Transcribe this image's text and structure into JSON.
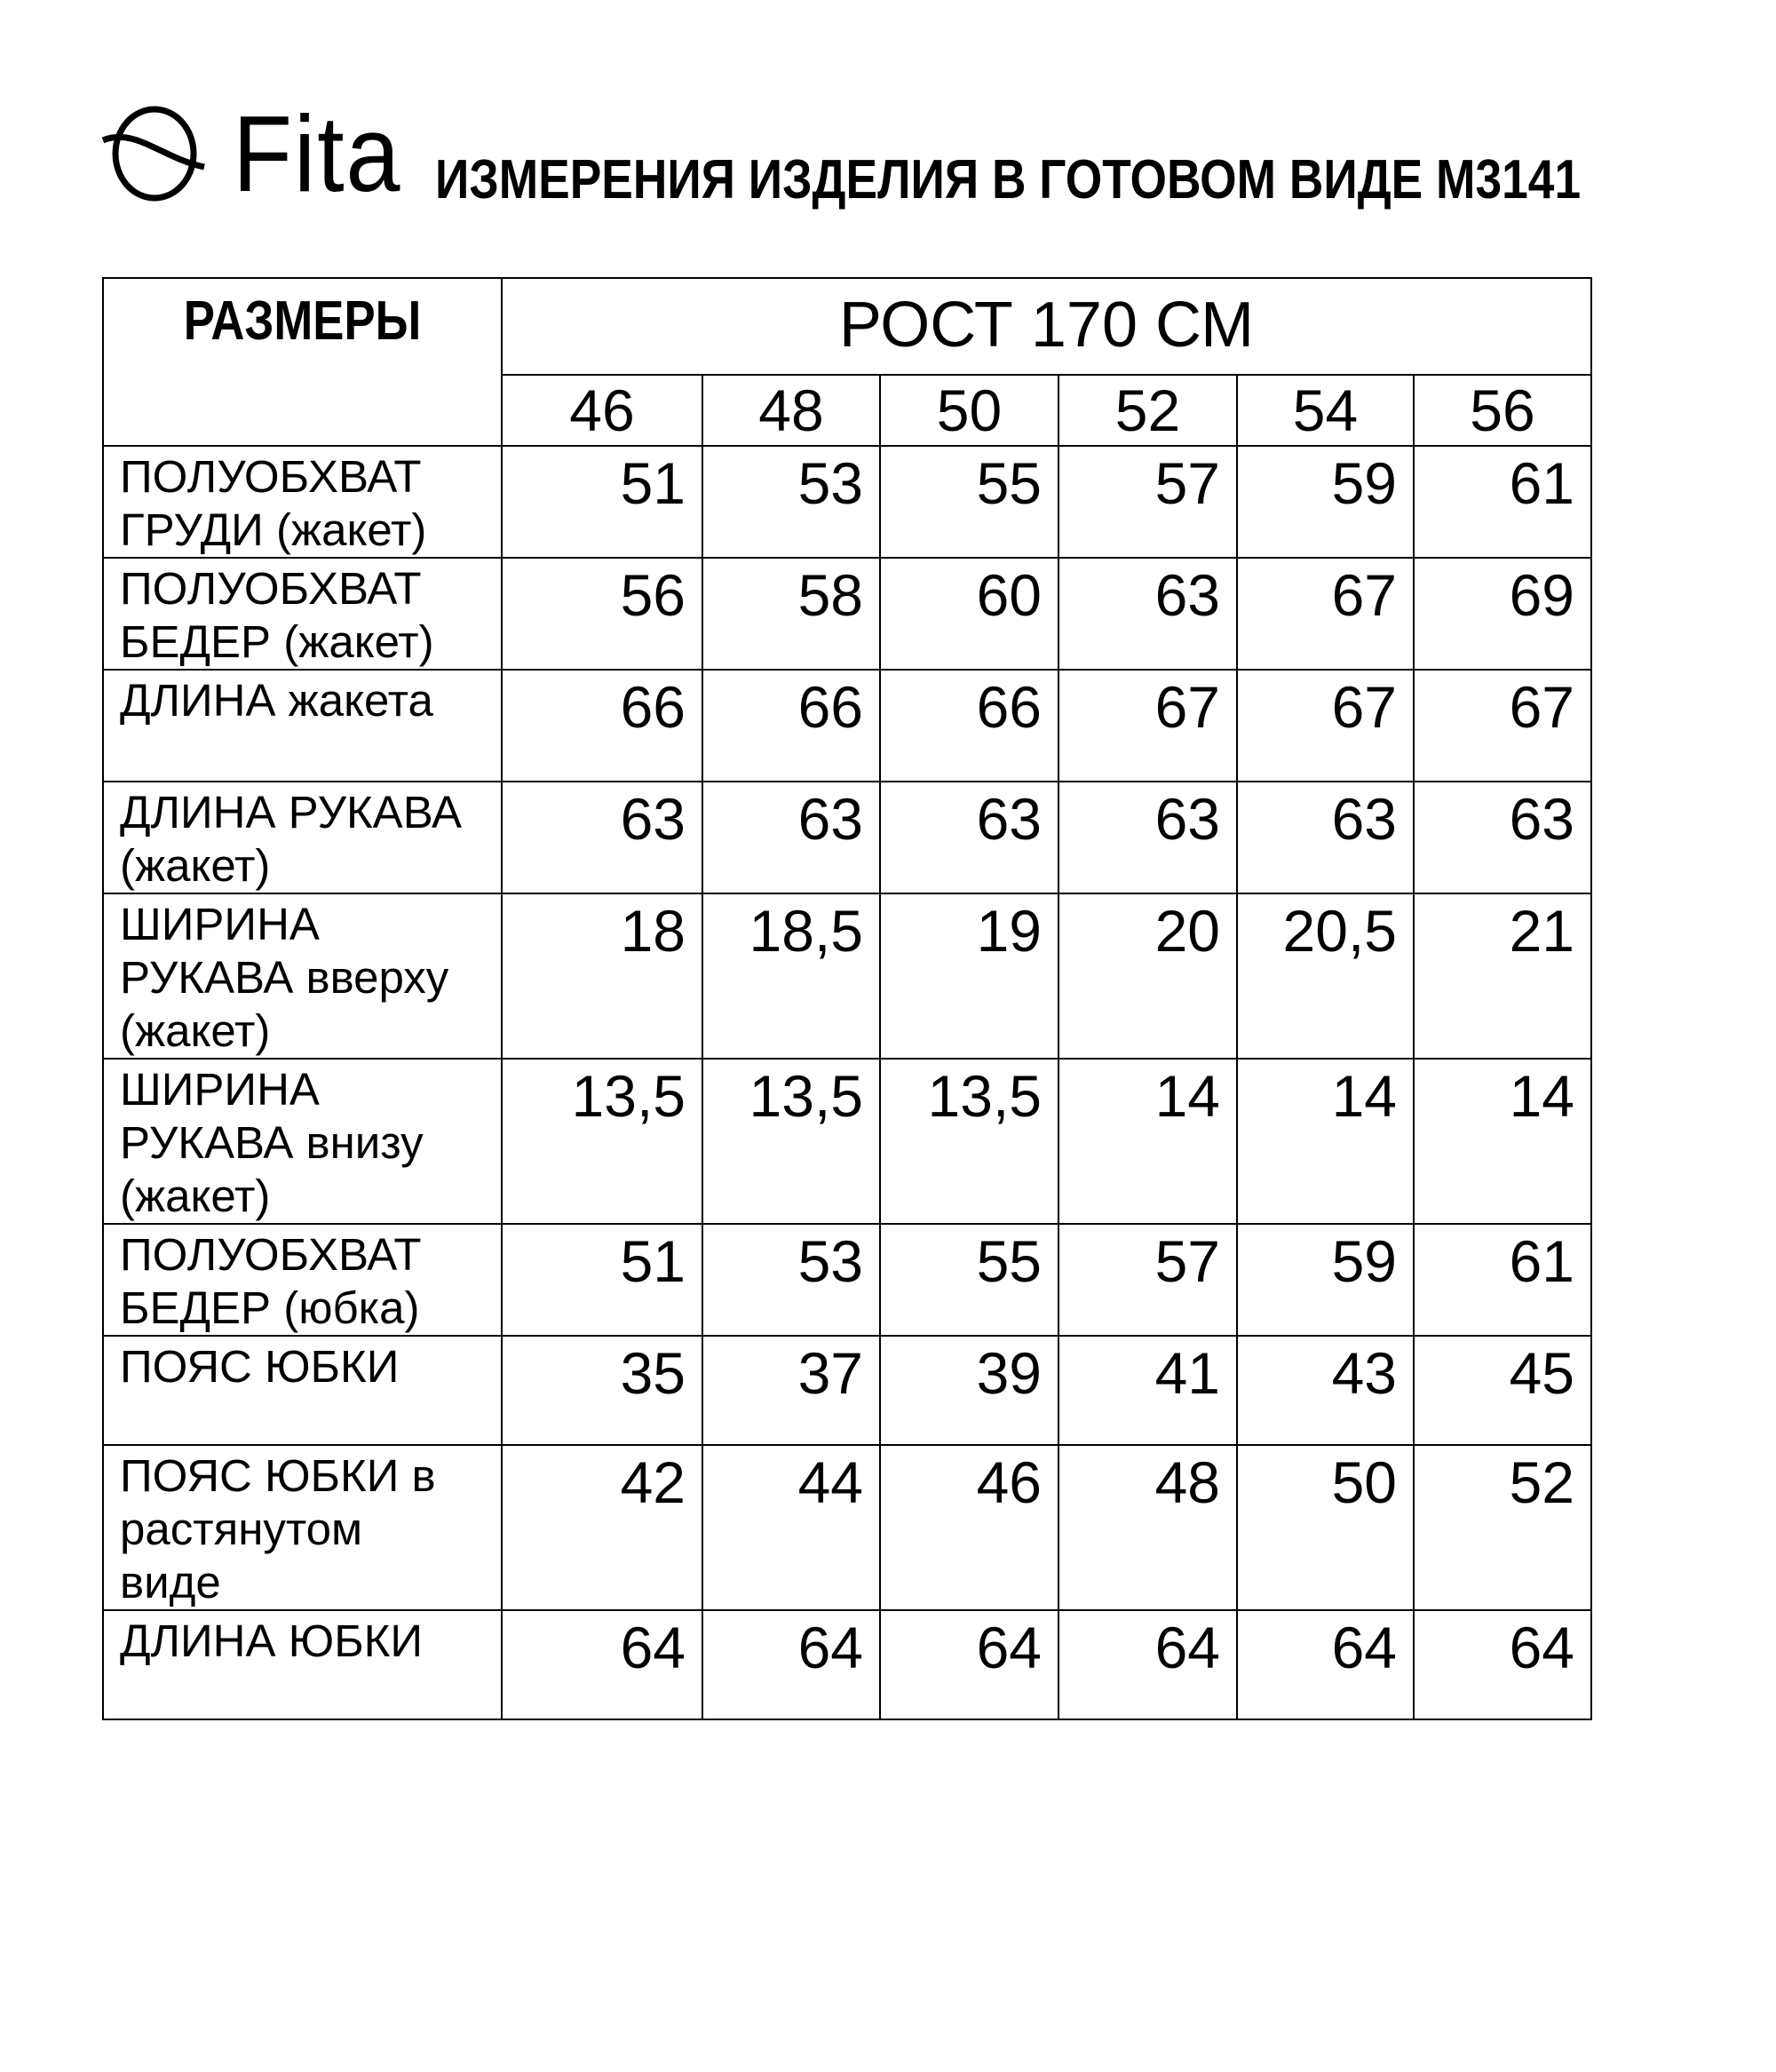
{
  "brand": {
    "name": "Fita"
  },
  "title": "ИЗМЕРЕНИЯ ИЗДЕЛИЯ В ГОТОВОМ ВИДЕ М3141",
  "table": {
    "corner_label": "РАЗМЕРЫ",
    "height_label": "РОСТ 170 СМ",
    "sizes": [
      "46",
      "48",
      "50",
      "52",
      "54",
      "56"
    ],
    "rows": [
      {
        "label": "ПОЛУОБХВАТ\nГРУДИ (жакет)",
        "values": [
          "51",
          "53",
          "55",
          "57",
          "59",
          "61"
        ]
      },
      {
        "label": "ПОЛУОБХВАТ\nБЕДЕР (жакет)",
        "values": [
          "56",
          "58",
          "60",
          "63",
          "67",
          "69"
        ]
      },
      {
        "label": "ДЛИНА жакета",
        "values": [
          "66",
          "66",
          "66",
          "67",
          "67",
          "67"
        ]
      },
      {
        "label": "ДЛИНА РУКАВА\n(жакет)",
        "values": [
          "63",
          "63",
          "63",
          "63",
          "63",
          "63"
        ]
      },
      {
        "label": "ШИРИНА\nРУКАВА вверху\n(жакет)",
        "values": [
          "18",
          "18,5",
          "19",
          "20",
          "20,5",
          "21"
        ]
      },
      {
        "label": "ШИРИНА\nРУКАВА внизу\n(жакет)",
        "values": [
          "13,5",
          "13,5",
          "13,5",
          "14",
          "14",
          "14"
        ]
      },
      {
        "label": "ПОЛУОБХВАТ\nБЕДЕР (юбка)",
        "values": [
          "51",
          "53",
          "55",
          "57",
          "59",
          "61"
        ]
      },
      {
        "label": "ПОЯС ЮБКИ",
        "values": [
          "35",
          "37",
          "39",
          "41",
          "43",
          "45"
        ]
      },
      {
        "label": "ПОЯС ЮБКИ в\nрастянутом\nвиде",
        "values": [
          "42",
          "44",
          "46",
          "48",
          "50",
          "52"
        ]
      },
      {
        "label": "ДЛИНА ЮБКИ",
        "values": [
          "64",
          "64",
          "64",
          "64",
          "64",
          "64"
        ]
      }
    ]
  }
}
